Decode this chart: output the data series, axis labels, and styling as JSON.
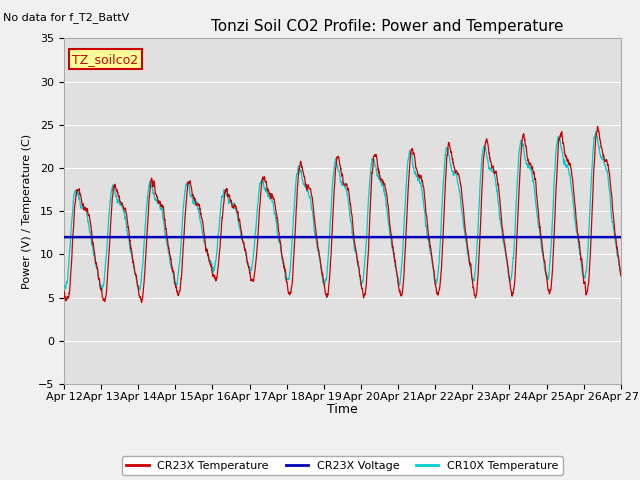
{
  "title": "Tonzi Soil CO2 Profile: Power and Temperature",
  "no_data_text": "No data for f_T2_BattV",
  "ylabel": "Power (V) / Temperature (C)",
  "xlabel": "Time",
  "ylim": [
    -5,
    35
  ],
  "xlim": [
    0,
    15
  ],
  "xtick_labels": [
    "Apr 12",
    "Apr 13",
    "Apr 14",
    "Apr 15",
    "Apr 16",
    "Apr 17",
    "Apr 18",
    "Apr 19",
    "Apr 20",
    "Apr 21",
    "Apr 22",
    "Apr 23",
    "Apr 24",
    "Apr 25",
    "Apr 26",
    "Apr 27"
  ],
  "ytick_values": [
    -5,
    0,
    5,
    10,
    15,
    20,
    25,
    30,
    35
  ],
  "voltage_value": 12.0,
  "voltage_color": "#0000bb",
  "cr23x_temp_color": "#cc0000",
  "cr10x_temp_color": "#00cccc",
  "legend_box_label": "TZ_soilco2",
  "legend_box_color": "#cc0000",
  "legend_box_bg": "#ffff99",
  "fig_bg_color": "#f0f0f0",
  "plot_bg_color": "#e0e0e0",
  "legend_labels": [
    "CR23X Temperature",
    "CR23X Voltage",
    "CR10X Temperature"
  ],
  "legend_colors": [
    "#cc0000",
    "#0000bb",
    "#00cccc"
  ],
  "figsize": [
    6.4,
    4.8
  ],
  "dpi": 100
}
